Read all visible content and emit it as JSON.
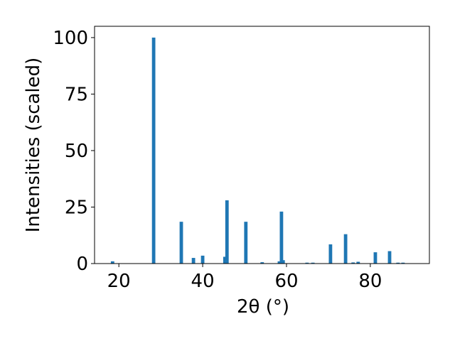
{
  "chart_data": {
    "type": "bar",
    "xlabel": "2θ (°)",
    "ylabel": "Intensities (scaled)",
    "x": [
      18.5,
      28.3,
      34.9,
      37.8,
      40.0,
      45.3,
      45.8,
      50.3,
      54.2,
      58.3,
      58.8,
      59.2,
      64.9,
      66.3,
      70.5,
      74.1,
      75.9,
      77.1,
      81.2,
      84.6,
      86.6,
      87.8
    ],
    "values": [
      1,
      100,
      18.5,
      2.5,
      3.5,
      3,
      28,
      18.5,
      0.6,
      1,
      23,
      1.5,
      0.4,
      0.4,
      8.5,
      13,
      0.5,
      0.8,
      5,
      5.5,
      0.4,
      0.4
    ],
    "color": "#1f77b4",
    "xlim": [
      14.2,
      94.1
    ],
    "ylim": [
      0,
      105
    ],
    "xticks": [
      20,
      40,
      60,
      80
    ],
    "yticks": [
      0,
      25,
      50,
      75,
      100
    ]
  }
}
